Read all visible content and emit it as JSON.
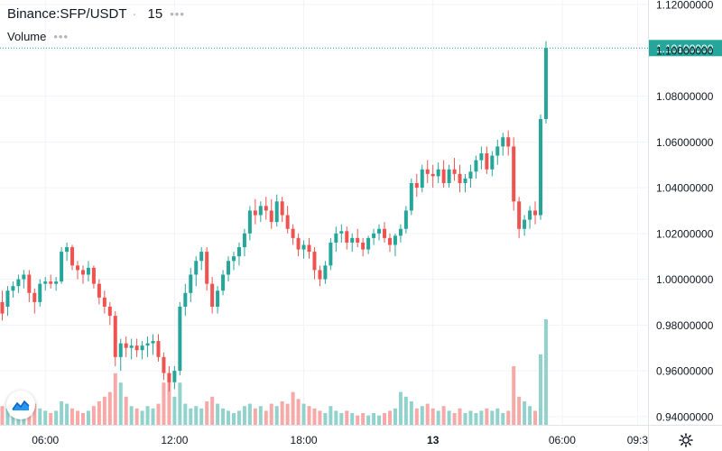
{
  "header": {
    "symbol": "Binance:SFP/USDT",
    "interval": "15",
    "volume_label": "Volume"
  },
  "colors": {
    "up": "#26a69a",
    "down": "#ef5350",
    "up_volume": "#92d2cc",
    "down_volume": "#f7a9a7",
    "grid": "#f0f3fa",
    "axis_text": "#131722",
    "price_line": "#26a69a"
  },
  "icons": {
    "logo": "tradingview-logo-icon",
    "settings": "gear-icon"
  },
  "chart_data": {
    "type": "candlestick",
    "symbol": "Binance:SFP/USDT",
    "interval": "15",
    "ylim": [
      0.935,
      1.122
    ],
    "y_ticks": [
      "1.12000000",
      "1.10000000",
      "1.08000000",
      "1.06000000",
      "1.04000000",
      "1.02000000",
      "1.00000000",
      "0.98000000",
      "0.96000000",
      "0.94000000"
    ],
    "x_ticks": [
      {
        "label": "06:00",
        "index": 8,
        "bold": false
      },
      {
        "label": "12:00",
        "index": 32,
        "bold": false
      },
      {
        "label": "18:00",
        "index": 56,
        "bold": false
      },
      {
        "label": "13",
        "index": 80,
        "bold": true
      },
      {
        "label": "06:00",
        "index": 104,
        "bold": false
      },
      {
        "label": "09:3",
        "index": 118,
        "bold": false
      }
    ],
    "last_price": "1.10100000",
    "candles": [
      [
        0.99,
        0.995,
        0.982,
        0.985,
        8
      ],
      [
        0.988,
        0.997,
        0.984,
        0.995,
        7
      ],
      [
        0.995,
        0.999,
        0.992,
        0.997,
        9
      ],
      [
        0.997,
        1.002,
        0.994,
        1.0,
        6
      ],
      [
        1.0,
        1.004,
        0.996,
        1.002,
        8
      ],
      [
        1.002,
        1.004,
        0.99,
        0.994,
        12
      ],
      [
        0.994,
        0.996,
        0.985,
        0.99,
        9
      ],
      [
        0.99,
        1.0,
        0.988,
        0.998,
        7
      ],
      [
        0.998,
        1.001,
        0.995,
        0.999,
        6
      ],
      [
        0.999,
        1.002,
        0.996,
        0.998,
        5
      ],
      [
        0.998,
        1.001,
        0.995,
        0.999,
        6
      ],
      [
        0.999,
        1.014,
        0.998,
        1.012,
        10
      ],
      [
        1.012,
        1.016,
        1.008,
        1.014,
        9
      ],
      [
        1.014,
        1.015,
        1.004,
        1.006,
        7
      ],
      [
        1.006,
        1.008,
        1.0,
        1.004,
        6
      ],
      [
        1.004,
        1.006,
        0.998,
        1.002,
        5
      ],
      [
        1.002,
        1.008,
        0.999,
        1.005,
        6
      ],
      [
        1.005,
        1.006,
        0.996,
        0.998,
        8
      ],
      [
        0.998,
        1.0,
        0.989,
        0.992,
        10
      ],
      [
        0.992,
        0.995,
        0.985,
        0.988,
        12
      ],
      [
        0.988,
        0.99,
        0.98,
        0.984,
        14
      ],
      [
        0.984,
        0.986,
        0.962,
        0.966,
        22
      ],
      [
        0.966,
        0.974,
        0.96,
        0.972,
        18
      ],
      [
        0.972,
        0.975,
        0.966,
        0.97,
        12
      ],
      [
        0.97,
        0.974,
        0.965,
        0.971,
        8
      ],
      [
        0.971,
        0.974,
        0.966,
        0.969,
        7
      ],
      [
        0.969,
        0.973,
        0.965,
        0.971,
        6
      ],
      [
        0.971,
        0.975,
        0.966,
        0.972,
        8
      ],
      [
        0.972,
        0.976,
        0.967,
        0.973,
        7
      ],
      [
        0.973,
        0.976,
        0.964,
        0.966,
        9
      ],
      [
        0.966,
        0.968,
        0.956,
        0.959,
        18
      ],
      [
        0.959,
        0.962,
        0.951,
        0.955,
        22
      ],
      [
        0.955,
        0.962,
        0.952,
        0.96,
        12
      ],
      [
        0.96,
        0.99,
        0.958,
        0.988,
        18
      ],
      [
        0.988,
        0.998,
        0.984,
        0.994,
        9
      ],
      [
        0.994,
        1.005,
        0.99,
        1.002,
        7
      ],
      [
        1.002,
        1.01,
        0.997,
        1.008,
        8
      ],
      [
        1.008,
        1.014,
        1.004,
        1.012,
        7
      ],
      [
        1.012,
        1.014,
        0.995,
        0.998,
        10
      ],
      [
        0.998,
        1.001,
        0.985,
        0.988,
        12
      ],
      [
        0.988,
        0.997,
        0.985,
        0.995,
        9
      ],
      [
        0.995,
        1.004,
        0.993,
        1.002,
        7
      ],
      [
        1.002,
        1.01,
        0.999,
        1.008,
        6
      ],
      [
        1.008,
        1.012,
        1.004,
        1.01,
        5
      ],
      [
        1.01,
        1.016,
        1.006,
        1.014,
        6
      ],
      [
        1.014,
        1.022,
        1.01,
        1.02,
        8
      ],
      [
        1.02,
        1.032,
        1.017,
        1.03,
        9
      ],
      [
        1.03,
        1.035,
        1.024,
        1.028,
        7
      ],
      [
        1.028,
        1.034,
        1.025,
        1.032,
        8
      ],
      [
        1.032,
        1.036,
        1.026,
        1.03,
        6
      ],
      [
        1.03,
        1.035,
        1.022,
        1.025,
        9
      ],
      [
        1.025,
        1.037,
        1.023,
        1.034,
        8
      ],
      [
        1.034,
        1.036,
        1.025,
        1.028,
        10
      ],
      [
        1.028,
        1.032,
        1.02,
        1.022,
        9
      ],
      [
        1.022,
        1.024,
        1.015,
        1.018,
        14
      ],
      [
        1.018,
        1.02,
        1.01,
        1.013,
        11
      ],
      [
        1.013,
        1.017,
        1.009,
        1.015,
        9
      ],
      [
        1.015,
        1.018,
        1.009,
        1.012,
        8
      ],
      [
        1.012,
        1.014,
        1.0,
        1.004,
        7
      ],
      [
        1.004,
        1.006,
        0.997,
        1.0,
        6
      ],
      [
        1.0,
        1.008,
        0.998,
        1.006,
        5
      ],
      [
        1.006,
        1.018,
        1.004,
        1.016,
        8
      ],
      [
        1.016,
        1.023,
        1.012,
        1.02,
        6
      ],
      [
        1.02,
        1.024,
        1.016,
        1.021,
        5
      ],
      [
        1.021,
        1.023,
        1.013,
        1.016,
        6
      ],
      [
        1.016,
        1.02,
        1.012,
        1.018,
        5
      ],
      [
        1.018,
        1.022,
        1.014,
        1.016,
        4
      ],
      [
        1.016,
        1.018,
        1.01,
        1.013,
        5
      ],
      [
        1.013,
        1.019,
        1.011,
        1.018,
        4
      ],
      [
        1.018,
        1.022,
        1.015,
        1.02,
        5
      ],
      [
        1.02,
        1.024,
        1.017,
        1.022,
        4
      ],
      [
        1.022,
        1.025,
        1.016,
        1.018,
        5
      ],
      [
        1.018,
        1.02,
        1.012,
        1.015,
        6
      ],
      [
        1.015,
        1.02,
        1.01,
        1.019,
        7
      ],
      [
        1.019,
        1.024,
        1.016,
        1.022,
        14
      ],
      [
        1.022,
        1.032,
        1.02,
        1.03,
        12
      ],
      [
        1.03,
        1.044,
        1.028,
        1.042,
        10
      ],
      [
        1.042,
        1.046,
        1.036,
        1.04,
        7
      ],
      [
        1.04,
        1.05,
        1.038,
        1.048,
        8
      ],
      [
        1.048,
        1.052,
        1.042,
        1.046,
        9
      ],
      [
        1.046,
        1.05,
        1.04,
        1.045,
        7
      ],
      [
        1.045,
        1.051,
        1.042,
        1.048,
        6
      ],
      [
        1.048,
        1.052,
        1.04,
        1.042,
        8
      ],
      [
        1.042,
        1.05,
        1.04,
        1.048,
        6
      ],
      [
        1.048,
        1.053,
        1.043,
        1.046,
        5
      ],
      [
        1.046,
        1.05,
        1.038,
        1.042,
        7
      ],
      [
        1.042,
        1.046,
        1.038,
        1.044,
        5
      ],
      [
        1.044,
        1.05,
        1.04,
        1.047,
        6
      ],
      [
        1.047,
        1.054,
        1.044,
        1.052,
        5
      ],
      [
        1.052,
        1.058,
        1.048,
        1.055,
        6
      ],
      [
        1.055,
        1.058,
        1.046,
        1.048,
        7
      ],
      [
        1.048,
        1.056,
        1.045,
        1.054,
        6
      ],
      [
        1.054,
        1.061,
        1.05,
        1.058,
        7
      ],
      [
        1.058,
        1.064,
        1.054,
        1.062,
        5
      ],
      [
        1.062,
        1.065,
        1.054,
        1.058,
        6
      ],
      [
        1.058,
        1.062,
        1.03,
        1.034,
        25
      ],
      [
        1.034,
        1.036,
        1.018,
        1.022,
        12
      ],
      [
        1.022,
        1.028,
        1.019,
        1.026,
        10
      ],
      [
        1.026,
        1.032,
        1.022,
        1.03,
        8
      ],
      [
        1.03,
        1.034,
        1.024,
        1.028,
        6
      ],
      [
        1.028,
        1.072,
        1.026,
        1.07,
        30
      ],
      [
        1.07,
        1.104,
        1.068,
        1.101,
        45
      ]
    ]
  }
}
